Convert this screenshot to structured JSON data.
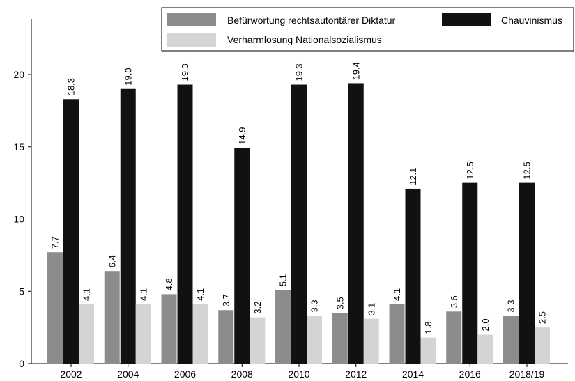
{
  "chart_data": {
    "type": "bar",
    "categories": [
      "2002",
      "2004",
      "2006",
      "2008",
      "2010",
      "2012",
      "2014",
      "2016",
      "2018/19"
    ],
    "series": [
      {
        "name": "Befürwortung rechtsautoritärer Diktatur",
        "color": "#8c8c8c",
        "values": [
          7.7,
          6.4,
          4.8,
          3.7,
          5.1,
          3.5,
          4.1,
          3.6,
          3.3
        ],
        "labels": [
          "7.7",
          "6.4",
          "4.8",
          "3.7",
          "5.1",
          "3.5",
          "4.1",
          "3.6",
          "3.3"
        ]
      },
      {
        "name": "Chauvinismus",
        "color": "#111111",
        "values": [
          18.3,
          19.0,
          19.3,
          14.9,
          19.3,
          19.4,
          12.1,
          12.5,
          12.5
        ],
        "labels": [
          "18.3",
          "19.0",
          "19.3",
          "14.9",
          "19.3",
          "19.4",
          "12.1",
          "12.5",
          "12.5"
        ]
      },
      {
        "name": "Verharmlosung Nationalsozialismus",
        "color": "#d4d4d4",
        "values": [
          4.1,
          4.1,
          4.1,
          3.2,
          3.3,
          3.1,
          1.8,
          2.0,
          2.5
        ],
        "labels": [
          "4.1",
          "4.1",
          "4.1",
          "3.2",
          "3.3",
          "3.1",
          "1.8",
          "2.0",
          "2.5"
        ]
      }
    ],
    "yticks": [
      0,
      5,
      10,
      15,
      20
    ],
    "ytick_labels": [
      "0",
      "5",
      "10",
      "15",
      "20"
    ],
    "ylim": [
      0,
      24.2
    ],
    "grid": false,
    "legend_position": "top-right"
  }
}
